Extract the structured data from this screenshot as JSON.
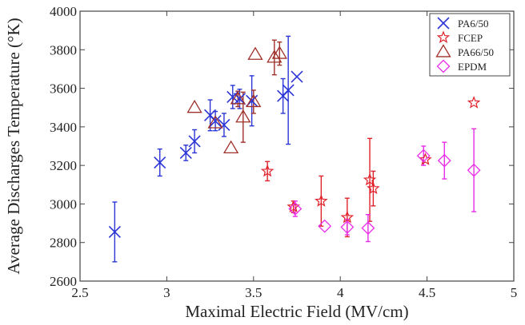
{
  "chart_data": {
    "type": "scatter",
    "title": "",
    "xlabel": "Maximal Electric Field (MV/cm)",
    "ylabel": "Average Discharges Temperature (°K)",
    "xlim": [
      2.5,
      5
    ],
    "ylim": [
      2600,
      4000
    ],
    "xticks": [
      "2.5",
      "3",
      "3.5",
      "4",
      "4.5",
      "5"
    ],
    "yticks": [
      "2600",
      "2800",
      "3000",
      "3200",
      "3400",
      "3600",
      "3800",
      "4000"
    ],
    "grid": false,
    "legend_position": "top-right",
    "series": [
      {
        "name": "PA6/50",
        "marker": "x",
        "color": "#2b35d6",
        "points": [
          {
            "x": 2.7,
            "y": 2855,
            "err": 155
          },
          {
            "x": 2.96,
            "y": 3215,
            "err": 70
          },
          {
            "x": 3.11,
            "y": 3265,
            "err": 40
          },
          {
            "x": 3.16,
            "y": 3325,
            "err": 60
          },
          {
            "x": 3.25,
            "y": 3460,
            "err": 80
          },
          {
            "x": 3.28,
            "y": 3430,
            "err": 50
          },
          {
            "x": 3.33,
            "y": 3410,
            "err": 60
          },
          {
            "x": 3.38,
            "y": 3555,
            "err": 60
          },
          {
            "x": 3.42,
            "y": 3545,
            "err": 50
          },
          {
            "x": 3.49,
            "y": 3535,
            "err": 130
          },
          {
            "x": 3.67,
            "y": 3560,
            "err": 90
          },
          {
            "x": 3.7,
            "y": 3590,
            "err": 280
          },
          {
            "x": 3.75,
            "y": 3660,
            "err": 0
          }
        ]
      },
      {
        "name": "FCEP",
        "marker": "star",
        "color": "#e0222a",
        "points": [
          {
            "x": 3.58,
            "y": 3170,
            "err": 50
          },
          {
            "x": 3.73,
            "y": 2985,
            "err": 30
          },
          {
            "x": 3.89,
            "y": 3015,
            "err": 130
          },
          {
            "x": 4.04,
            "y": 2930,
            "err": 100
          },
          {
            "x": 4.17,
            "y": 3125,
            "err": 215
          },
          {
            "x": 4.19,
            "y": 3080,
            "err": 90
          },
          {
            "x": 4.49,
            "y": 3230,
            "err": 0
          },
          {
            "x": 4.77,
            "y": 3525,
            "err": 0
          }
        ]
      },
      {
        "name": "PA66/50",
        "marker": "triangle",
        "color": "#a0302a",
        "points": [
          {
            "x": 3.16,
            "y": 3500,
            "err": 0
          },
          {
            "x": 3.28,
            "y": 3420,
            "err": 0
          },
          {
            "x": 3.37,
            "y": 3290,
            "err": 0
          },
          {
            "x": 3.41,
            "y": 3545,
            "err": 40
          },
          {
            "x": 3.44,
            "y": 3450,
            "err": 130
          },
          {
            "x": 3.5,
            "y": 3530,
            "err": 60
          },
          {
            "x": 3.51,
            "y": 3775,
            "err": 0
          },
          {
            "x": 3.62,
            "y": 3760,
            "err": 90
          },
          {
            "x": 3.65,
            "y": 3780,
            "err": 60
          }
        ]
      },
      {
        "name": "EPDM",
        "marker": "diamond",
        "color": "#e82ce8",
        "points": [
          {
            "x": 3.74,
            "y": 2975,
            "err": 40
          },
          {
            "x": 3.91,
            "y": 2885,
            "err": 0
          },
          {
            "x": 4.04,
            "y": 2880,
            "err": 40
          },
          {
            "x": 4.16,
            "y": 2875,
            "err": 70
          },
          {
            "x": 4.48,
            "y": 3250,
            "err": 50
          },
          {
            "x": 4.6,
            "y": 3225,
            "err": 95
          },
          {
            "x": 4.77,
            "y": 3175,
            "err": 215
          }
        ]
      }
    ]
  }
}
